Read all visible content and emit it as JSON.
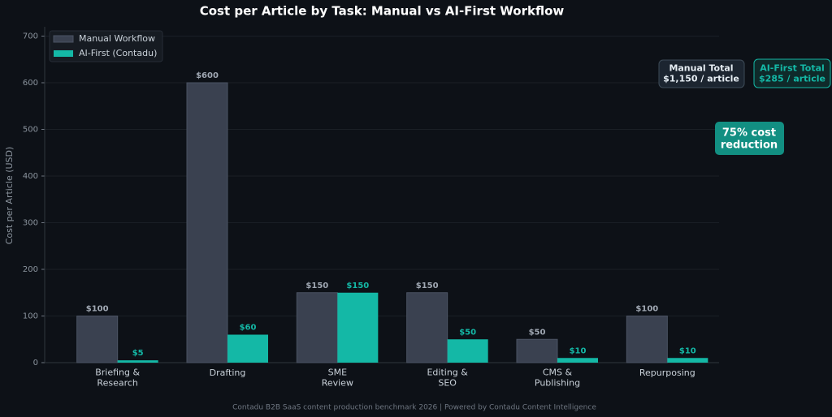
{
  "chart_data": {
    "type": "bar",
    "title": "Cost per Article by Task: Manual vs AI-First Workflow",
    "y_label": "Cost per Article (USD)",
    "categories": [
      "Briefing &\nResearch",
      "Drafting",
      "SME\nReview",
      "Editing &\nSEO",
      "CMS &\nPublishing",
      "Repurposing"
    ],
    "series": [
      {
        "name": "Manual Workflow",
        "color": "#3a4150",
        "values": [
          100,
          600,
          150,
          150,
          50,
          100
        ],
        "value_labels": [
          "$100",
          "$600",
          "$150",
          "$150",
          "$50",
          "$100"
        ]
      },
      {
        "name": "AI-First (Contadu)",
        "color": "#14b8a6",
        "values": [
          5,
          60,
          150,
          50,
          10,
          10
        ],
        "value_labels": [
          "$5",
          "$60",
          "$150",
          "$50",
          "$10",
          "$10"
        ]
      }
    ],
    "ylim": [
      0,
      700
    ],
    "yticks": [
      0,
      100,
      200,
      300,
      400,
      500,
      600,
      700
    ],
    "grid": true,
    "legend": "upper left",
    "annotations": [
      "Manual Total\n$1,150 / article",
      "AI-First Total\n$285 / article",
      "75% cost\nreduction"
    ],
    "footer": "Contadu B2B SaaS content production benchmark 2026  |  Powered by Contadu Content Intelligence"
  }
}
